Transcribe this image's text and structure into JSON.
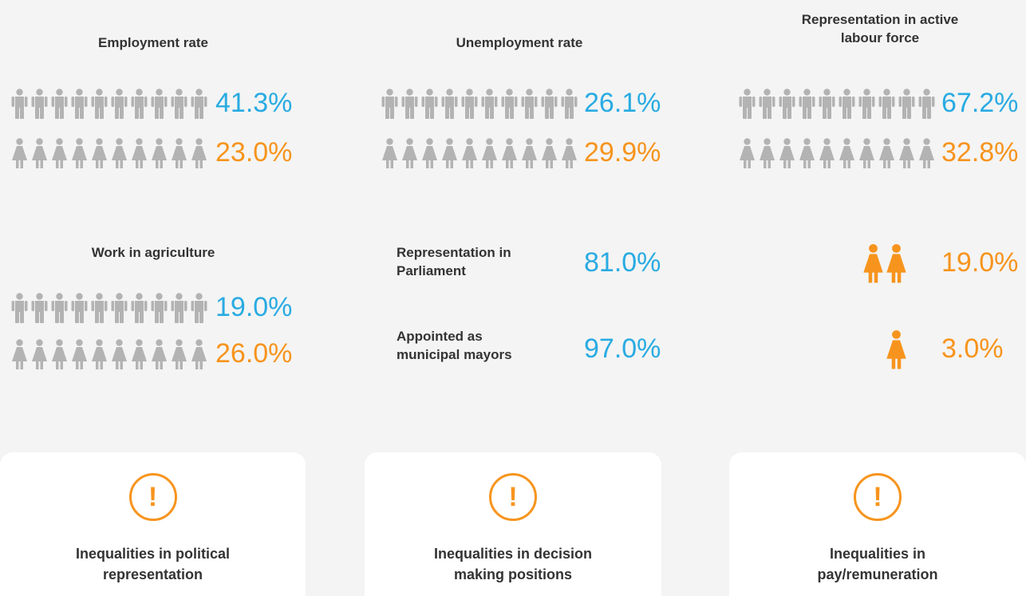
{
  "chart_data": [
    {
      "type": "pictogram",
      "title": "Employment rate",
      "values": [
        41.3,
        23.0
      ],
      "value_labels": [
        "41.3%",
        "23.0%"
      ],
      "colors": [
        "#29abe2",
        "#f7941d"
      ],
      "base_color": "#b3b3b3"
    },
    {
      "type": "pictogram",
      "title": "Unemployment rate",
      "values": [
        26.1,
        29.9
      ],
      "value_labels": [
        "26.1%",
        "29.9%"
      ],
      "colors": [
        "#29abe2",
        "#f7941d"
      ],
      "base_color": "#b3b3b3"
    },
    {
      "type": "pictogram",
      "title": "Representation in active labour force",
      "values": [
        67.2,
        32.8
      ],
      "value_labels": [
        "67.2%",
        "32.8%"
      ],
      "colors": [
        "#29abe2",
        "#f7941d"
      ],
      "base_color": "#b3b3b3"
    },
    {
      "type": "pictogram",
      "title": "Work in agriculture",
      "values": [
        19.0,
        26.0
      ],
      "value_labels": [
        "19.0%",
        "26.0%"
      ],
      "colors": [
        "#29abe2",
        "#f7941d"
      ],
      "base_color": "#b3b3b3"
    },
    {
      "type": "pictogram-split",
      "title": "Representation in Parliament",
      "values": [
        81.0,
        19.0
      ],
      "value_labels": [
        "81.0%",
        "19.0%"
      ],
      "colors": [
        "#29abe2",
        "#f7941d"
      ]
    },
    {
      "type": "pictogram-split",
      "title": "Appointed as municipal mayors",
      "values": [
        97.0,
        3.0
      ],
      "value_labels": [
        "97.0%",
        "3.0%"
      ],
      "colors": [
        "#29abe2",
        "#f7941d"
      ]
    }
  ],
  "cards": [
    {
      "title": "Inequalities in political representation"
    },
    {
      "title": "Inequalities in decision making positions"
    },
    {
      "title": "Inequalities in pay/remuneration"
    }
  ]
}
